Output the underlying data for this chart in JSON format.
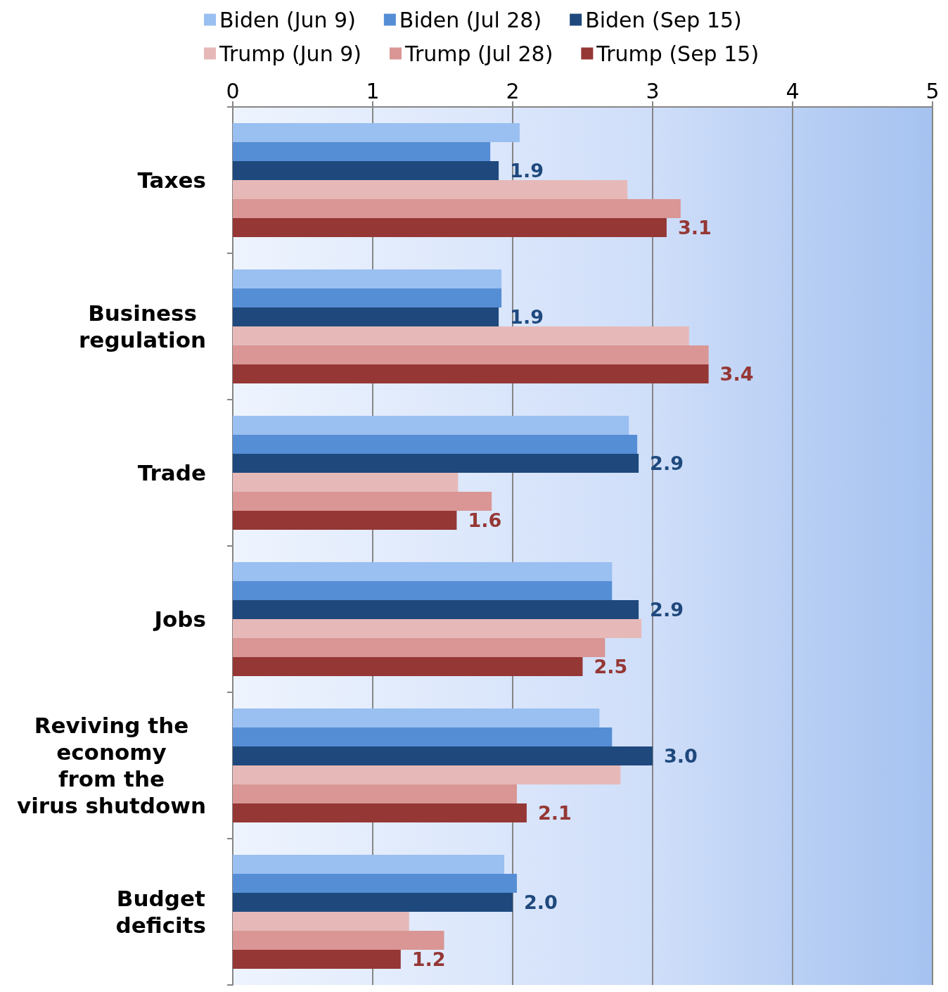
{
  "chart_data": {
    "type": "bar",
    "orientation": "horizontal",
    "categories": [
      "Taxes",
      "Business\nregulation",
      "Trade",
      "Jobs",
      "Reviving the\neconomy\nfrom the\nvirus shutdown",
      "Budget\ndeficits"
    ],
    "series": [
      {
        "name": "Biden (Jun 9)",
        "color": "#9abff1",
        "values": [
          2.05,
          1.92,
          2.83,
          2.71,
          2.62,
          1.94
        ]
      },
      {
        "name": "Biden (Jul 28)",
        "color": "#558ed5",
        "values": [
          1.84,
          1.92,
          2.89,
          2.71,
          2.71,
          2.03
        ]
      },
      {
        "name": "Biden (Sep 15)",
        "color": "#1f497d",
        "values": [
          1.9,
          1.9,
          2.9,
          2.9,
          3.0,
          2.0
        ],
        "value_labels": [
          "1.9",
          "1.9",
          "2.9",
          "2.9",
          "3.0",
          "2.0"
        ]
      },
      {
        "name": "Trump (Jun 9)",
        "color": "#e6b9b8",
        "values": [
          2.82,
          3.26,
          1.61,
          2.92,
          2.77,
          1.26
        ]
      },
      {
        "name": "Trump (Jul 28)",
        "color": "#d99694",
        "values": [
          3.2,
          3.4,
          1.85,
          2.66,
          2.03,
          1.51
        ]
      },
      {
        "name": "Trump (Sep 15)",
        "color": "#953735",
        "values": [
          3.1,
          3.4,
          1.6,
          2.5,
          2.1,
          1.2
        ],
        "value_labels": [
          "3.1",
          "3.4",
          "1.6",
          "2.5",
          "2.1",
          "1.2"
        ]
      }
    ],
    "xlim": [
      0,
      5
    ],
    "xticks": [
      0,
      1,
      2,
      3,
      4,
      5
    ],
    "grid": "x",
    "legend": "top"
  }
}
